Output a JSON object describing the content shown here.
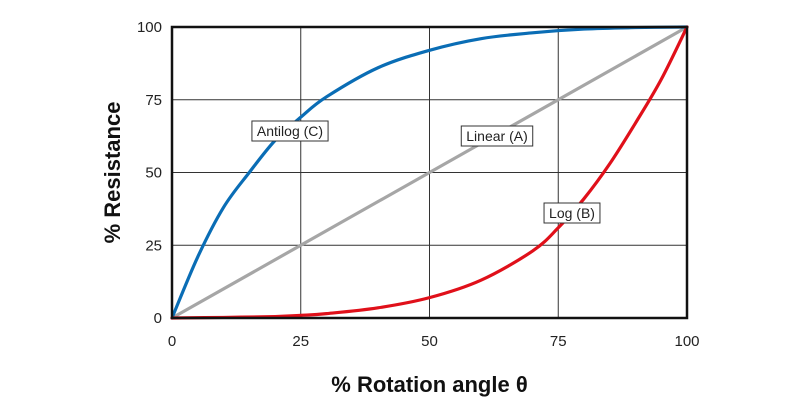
{
  "chart_data": {
    "type": "line",
    "xlabel": "% Rotation angle θ",
    "ylabel": "% Resistance",
    "xlim": [
      0,
      100
    ],
    "ylim": [
      0,
      100
    ],
    "xticks": [
      "0",
      "25",
      "50",
      "75",
      "100"
    ],
    "yticks": [
      "0",
      "25",
      "50",
      "75",
      "100"
    ],
    "grid": true,
    "legend": "inline labels",
    "series": [
      {
        "name": "Antilog (C)",
        "color": "#0A6DB5",
        "x": [
          0,
          5,
          10,
          15,
          20,
          25,
          30,
          40,
          50,
          60,
          70,
          80,
          90,
          100
        ],
        "y": [
          0,
          21,
          38,
          50,
          61,
          69,
          76,
          86,
          92,
          96,
          98,
          99.3,
          99.8,
          100
        ]
      },
      {
        "name": "Linear (A)",
        "color": "#A6A6A6",
        "x": [
          0,
          100
        ],
        "y": [
          0,
          100
        ]
      },
      {
        "name": "Log (B)",
        "color": "#E0101A",
        "x": [
          0,
          10,
          20,
          25,
          30,
          40,
          50,
          60,
          70,
          75,
          80,
          85,
          90,
          95,
          100
        ],
        "y": [
          0,
          0.2,
          0.5,
          0.9,
          1.5,
          3.5,
          7,
          13,
          23,
          31,
          41,
          53,
          67,
          82,
          100
        ]
      }
    ],
    "annotations": [
      "Antilog (C)",
      "Linear (A)",
      "Log (B)"
    ]
  }
}
